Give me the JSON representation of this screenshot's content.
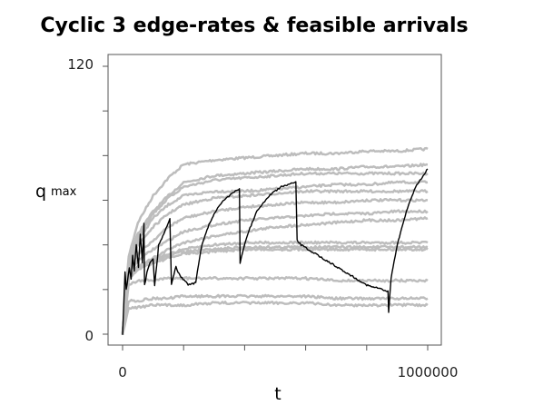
{
  "chart_data": {
    "type": "line",
    "title": "Cyclic 3 edge-rates & feasible arrivals",
    "xlabel": "t",
    "ylabel": {
      "main": "q",
      "sub": "max"
    },
    "xlim": [
      0,
      1000000
    ],
    "ylim": [
      0,
      120
    ],
    "x_tick_labels": [
      "0",
      "1000000"
    ],
    "y_tick_labels": [
      "0",
      "120"
    ],
    "colors": {
      "highlight": "#000000",
      "background_series": "#bdbdbd"
    },
    "grid": false,
    "legend": "none",
    "background_series": [
      {
        "x": [
          0,
          20000,
          50000,
          100000,
          150000,
          200000,
          300000,
          400000,
          500000,
          600000,
          700000,
          800000,
          900000,
          1000000
        ],
        "y": [
          0,
          35,
          50,
          62,
          70,
          76,
          78,
          79,
          80,
          81,
          81,
          82,
          82,
          83
        ]
      },
      {
        "x": [
          0,
          20000,
          50000,
          100000,
          150000,
          200000,
          300000,
          400000,
          500000,
          600000,
          700000,
          800000,
          900000,
          1000000
        ],
        "y": [
          0,
          33,
          45,
          55,
          62,
          68,
          71,
          72,
          73,
          74,
          74,
          75,
          75,
          76
        ]
      },
      {
        "x": [
          0,
          20000,
          50000,
          100000,
          150000,
          200000,
          300000,
          400000,
          500000,
          600000,
          700000,
          800000,
          900000,
          1000000
        ],
        "y": [
          0,
          32,
          44,
          54,
          61,
          66,
          69,
          70,
          71,
          72,
          72,
          72,
          72,
          72
        ]
      },
      {
        "x": [
          0,
          20000,
          50000,
          100000,
          150000,
          200000,
          300000,
          400000,
          500000,
          600000,
          700000,
          800000,
          900000,
          1000000
        ],
        "y": [
          0,
          31,
          42,
          52,
          58,
          62,
          64,
          64,
          65,
          66,
          67,
          67,
          68,
          68
        ]
      },
      {
        "x": [
          0,
          20000,
          50000,
          100000,
          150000,
          200000,
          300000,
          400000,
          500000,
          600000,
          700000,
          800000,
          900000,
          1000000
        ],
        "y": [
          0,
          30,
          40,
          48,
          54,
          58,
          61,
          62,
          63,
          64,
          64,
          64,
          64,
          64
        ]
      },
      {
        "x": [
          0,
          20000,
          50000,
          100000,
          150000,
          200000,
          300000,
          400000,
          500000,
          600000,
          700000,
          800000,
          900000,
          1000000
        ],
        "y": [
          0,
          28,
          36,
          42,
          48,
          52,
          55,
          57,
          58,
          59,
          59,
          60,
          60,
          60
        ]
      },
      {
        "x": [
          0,
          20000,
          50000,
          100000,
          150000,
          200000,
          300000,
          400000,
          500000,
          600000,
          700000,
          800000,
          900000,
          1000000
        ],
        "y": [
          0,
          27,
          33,
          38,
          42,
          46,
          49,
          51,
          52,
          53,
          54,
          54,
          55,
          55
        ]
      },
      {
        "x": [
          0,
          20000,
          50000,
          100000,
          150000,
          200000,
          300000,
          400000,
          500000,
          600000,
          700000,
          800000,
          900000,
          1000000
        ],
        "y": [
          0,
          26,
          30,
          34,
          38,
          41,
          44,
          46,
          48,
          49,
          50,
          51,
          51,
          52
        ]
      },
      {
        "x": [
          0,
          20000,
          50000,
          100000,
          150000,
          200000,
          300000,
          400000,
          500000,
          600000,
          700000,
          800000,
          900000,
          1000000
        ],
        "y": [
          0,
          25,
          30,
          33,
          36,
          38,
          40,
          41,
          41,
          41,
          41,
          41,
          41,
          41
        ]
      },
      {
        "x": [
          0,
          20000,
          50000,
          100000,
          150000,
          200000,
          300000,
          400000,
          500000,
          600000,
          700000,
          800000,
          900000,
          1000000
        ],
        "y": [
          0,
          25,
          30,
          33,
          35,
          37,
          38,
          39,
          39,
          39,
          39,
          39,
          39,
          39
        ]
      },
      {
        "x": [
          0,
          20000,
          50000,
          100000,
          150000,
          200000,
          300000,
          400000,
          500000,
          600000,
          700000,
          800000,
          900000,
          1000000
        ],
        "y": [
          0,
          24,
          29,
          32,
          34,
          36,
          37,
          38,
          38,
          38,
          38,
          38,
          38,
          38
        ]
      },
      {
        "x": [
          0,
          20000,
          50000,
          100000,
          150000,
          200000,
          300000,
          400000,
          500000,
          600000,
          700000,
          800000,
          900000,
          1000000
        ],
        "y": [
          0,
          22,
          24,
          24,
          25,
          25,
          25,
          25,
          25,
          25,
          24,
          24,
          24,
          24
        ]
      },
      {
        "x": [
          0,
          20000,
          50000,
          100000,
          150000,
          200000,
          300000,
          400000,
          500000,
          600000,
          700000,
          800000,
          900000,
          1000000
        ],
        "y": [
          0,
          15,
          15,
          16,
          16,
          17,
          17,
          17,
          17,
          17,
          16,
          16,
          16,
          16
        ]
      },
      {
        "x": [
          0,
          20000,
          50000,
          100000,
          150000,
          200000,
          300000,
          400000,
          500000,
          600000,
          700000,
          800000,
          900000,
          1000000
        ],
        "y": [
          0,
          12,
          12,
          13,
          13,
          13,
          14,
          14,
          14,
          14,
          13,
          13,
          13,
          13
        ]
      }
    ],
    "highlight_series": {
      "x": [
        0,
        3000,
        8000,
        12000,
        15000,
        22000,
        28000,
        33000,
        38000,
        45000,
        52000,
        58000,
        65000,
        70000,
        72000,
        75000,
        80000,
        85000,
        90000,
        95000,
        100000,
        105000,
        115000,
        118000,
        125000,
        135000,
        145000,
        155000,
        160000,
        165000,
        172000,
        175000,
        185000,
        195000,
        205000,
        215000,
        240000,
        245000,
        260000,
        280000,
        300000,
        330000,
        370000,
        383000,
        385000,
        390000,
        410000,
        440000,
        480000,
        520000,
        568000,
        572000,
        585000,
        620000,
        680000,
        740000,
        800000,
        850000,
        870000,
        872000,
        880000,
        900000,
        930000,
        960000,
        1000000
      ],
      "y": [
        0,
        10,
        28,
        20,
        22,
        30,
        25,
        35,
        28,
        40,
        30,
        45,
        32,
        50,
        22,
        24,
        28,
        30,
        32,
        33,
        34,
        22,
        35,
        40,
        42,
        45,
        48,
        52,
        22,
        25,
        29,
        30,
        27,
        25,
        24,
        22,
        23,
        28,
        40,
        48,
        54,
        60,
        64,
        65,
        32,
        35,
        45,
        55,
        62,
        66,
        68,
        42,
        40,
        37,
        32,
        27,
        22,
        20,
        19,
        10,
        25,
        40,
        55,
        66,
        74
      ]
    }
  }
}
